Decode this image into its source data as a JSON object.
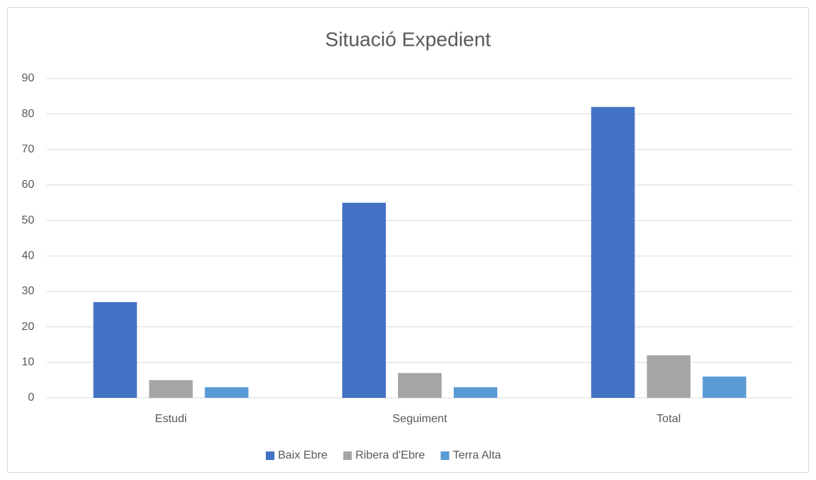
{
  "chart_data": {
    "type": "bar",
    "title": "Situació Expedient",
    "categories": [
      "Estudi",
      "Seguiment",
      "Total"
    ],
    "series": [
      {
        "name": "Baix Ebre",
        "color": "#4472c4",
        "values": [
          27,
          55,
          82
        ]
      },
      {
        "name": "Ribera d'Ebre",
        "color": "#a5a5a5",
        "values": [
          5,
          7,
          12
        ]
      },
      {
        "name": "Terra Alta",
        "color": "#5b9bd5",
        "values": [
          3,
          3,
          6
        ]
      }
    ],
    "ylim": [
      0,
      90
    ],
    "yticks": [
      0,
      10,
      20,
      30,
      40,
      50,
      60,
      70,
      80,
      90
    ],
    "grid": true,
    "legend": "bottom"
  }
}
